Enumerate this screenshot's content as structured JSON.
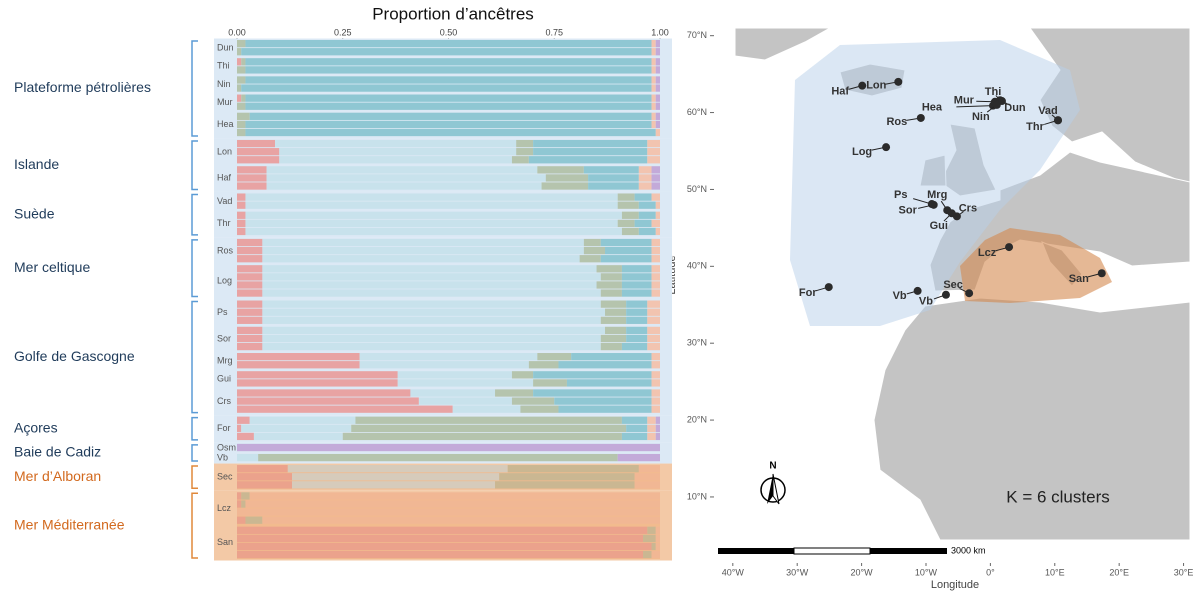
{
  "structure_plot": {
    "title": "Proportion d’ancêtres",
    "xlim": [
      0,
      1
    ],
    "xticks": [
      {
        "value": 0,
        "label": "0.00"
      },
      {
        "value": 0.25,
        "label": "0.25"
      },
      {
        "value": 0.5,
        "label": "0.50"
      },
      {
        "value": 0.75,
        "label": "0.75"
      },
      {
        "value": 1,
        "label": "1.00"
      }
    ],
    "cluster_colors": [
      "#e8a3a3",
      "#c8e2ec",
      "#b5c4ad",
      "#8fc7d3",
      "#f2c4b0",
      "#c3aad9"
    ],
    "regions": [
      {
        "name": "Plateforme pétrolières",
        "color": "#5b9bd5",
        "text_color": "#1f3b5a",
        "populations": [
          {
            "code": "Dun",
            "individuals": [
              [
                0,
                0,
                0.02,
                0.96,
                0.01,
                0.01
              ],
              [
                0,
                0,
                0.01,
                0.97,
                0.01,
                0.01
              ]
            ]
          },
          {
            "code": "Thi",
            "individuals": [
              [
                0.01,
                0,
                0.01,
                0.96,
                0.01,
                0.01
              ],
              [
                0,
                0,
                0.02,
                0.96,
                0.01,
                0.01
              ]
            ]
          },
          {
            "code": "Nin",
            "individuals": [
              [
                0,
                0,
                0.02,
                0.96,
                0.01,
                0.01
              ],
              [
                0,
                0,
                0.01,
                0.97,
                0.01,
                0.01
              ]
            ]
          },
          {
            "code": "Mur",
            "individuals": [
              [
                0.01,
                0,
                0.01,
                0.96,
                0.01,
                0.01
              ],
              [
                0,
                0,
                0.02,
                0.96,
                0.01,
                0.01
              ]
            ]
          },
          {
            "code": "Hea",
            "individuals": [
              [
                0,
                0,
                0.03,
                0.95,
                0.01,
                0.01
              ],
              [
                0,
                0,
                0.02,
                0.96,
                0.01,
                0.01
              ],
              [
                0,
                0,
                0.02,
                0.97,
                0.01,
                0
              ]
            ]
          }
        ]
      },
      {
        "name": "Islande",
        "color": "#5b9bd5",
        "text_color": "#1f3b5a",
        "populations": [
          {
            "code": "Lon",
            "individuals": [
              [
                0.09,
                0.57,
                0.04,
                0.27,
                0.03,
                0
              ],
              [
                0.1,
                0.56,
                0.04,
                0.27,
                0.03,
                0
              ],
              [
                0.1,
                0.55,
                0.04,
                0.28,
                0.03,
                0
              ]
            ]
          },
          {
            "code": "Haf",
            "individuals": [
              [
                0.07,
                0.64,
                0.11,
                0.13,
                0.03,
                0.02
              ],
              [
                0.07,
                0.66,
                0.1,
                0.12,
                0.03,
                0.02
              ],
              [
                0.07,
                0.65,
                0.11,
                0.12,
                0.03,
                0.02
              ]
            ]
          }
        ]
      },
      {
        "name": "Suède",
        "color": "#5b9bd5",
        "text_color": "#1f3b5a",
        "populations": [
          {
            "code": "Vad",
            "individuals": [
              [
                0.02,
                0.88,
                0.04,
                0.04,
                0.02,
                0
              ],
              [
                0.02,
                0.88,
                0.05,
                0.04,
                0.01,
                0
              ]
            ]
          },
          {
            "code": "Thr",
            "individuals": [
              [
                0.02,
                0.89,
                0.04,
                0.04,
                0.01,
                0
              ],
              [
                0.02,
                0.88,
                0.04,
                0.04,
                0.02,
                0
              ],
              [
                0.02,
                0.89,
                0.04,
                0.04,
                0.01,
                0
              ]
            ]
          }
        ]
      },
      {
        "name": "Mer celtique",
        "color": "#5b9bd5",
        "text_color": "#1f3b5a",
        "populations": [
          {
            "code": "Ros",
            "individuals": [
              [
                0.06,
                0.76,
                0.04,
                0.12,
                0.02,
                0
              ],
              [
                0.06,
                0.76,
                0.05,
                0.11,
                0.02,
                0
              ],
              [
                0.06,
                0.75,
                0.05,
                0.12,
                0.02,
                0
              ]
            ]
          },
          {
            "code": "Log",
            "individuals": [
              [
                0.06,
                0.79,
                0.06,
                0.07,
                0.02,
                0
              ],
              [
                0.06,
                0.8,
                0.05,
                0.07,
                0.02,
                0
              ],
              [
                0.06,
                0.79,
                0.06,
                0.07,
                0.02,
                0
              ],
              [
                0.06,
                0.8,
                0.05,
                0.07,
                0.02,
                0
              ]
            ]
          }
        ]
      },
      {
        "name": "Golfe de Gascogne",
        "color": "#5b9bd5",
        "text_color": "#1f3b5a",
        "populations": [
          {
            "code": "Ps",
            "individuals": [
              [
                0.06,
                0.8,
                0.06,
                0.05,
                0.03,
                0
              ],
              [
                0.06,
                0.81,
                0.05,
                0.05,
                0.03,
                0
              ],
              [
                0.06,
                0.8,
                0.06,
                0.05,
                0.03,
                0
              ]
            ]
          },
          {
            "code": "Sor",
            "individuals": [
              [
                0.06,
                0.81,
                0.05,
                0.05,
                0.03,
                0
              ],
              [
                0.06,
                0.8,
                0.06,
                0.05,
                0.03,
                0
              ],
              [
                0.06,
                0.8,
                0.05,
                0.06,
                0.03,
                0
              ]
            ]
          },
          {
            "code": "Mrg",
            "individuals": [
              [
                0.29,
                0.42,
                0.08,
                0.19,
                0.02,
                0
              ],
              [
                0.29,
                0.4,
                0.07,
                0.22,
                0.02,
                0
              ]
            ]
          },
          {
            "code": "Gui",
            "individuals": [
              [
                0.38,
                0.27,
                0.05,
                0.28,
                0.02,
                0
              ],
              [
                0.38,
                0.32,
                0.08,
                0.2,
                0.02,
                0
              ]
            ]
          },
          {
            "code": "Crs",
            "individuals": [
              [
                0.41,
                0.2,
                0.09,
                0.28,
                0.02,
                0
              ],
              [
                0.43,
                0.22,
                0.1,
                0.23,
                0.02,
                0
              ],
              [
                0.51,
                0.16,
                0.09,
                0.22,
                0.02,
                0
              ]
            ]
          }
        ]
      },
      {
        "name": "Açores",
        "color": "#5b9bd5",
        "text_color": "#1f3b5a",
        "populations": [
          {
            "code": "For",
            "individuals": [
              [
                0.03,
                0.25,
                0.63,
                0.06,
                0.02,
                0.01
              ],
              [
                0.01,
                0.26,
                0.65,
                0.05,
                0.02,
                0.01
              ],
              [
                0.04,
                0.21,
                0.66,
                0.06,
                0.02,
                0.01
              ]
            ]
          }
        ]
      },
      {
        "name": "Baie de Cadiz",
        "color": "#5b9bd5",
        "text_color": "#1f3b5a",
        "populations": [
          {
            "code": "Osm",
            "individuals": [
              [
                0,
                0,
                0,
                0,
                0,
                1
              ]
            ]
          },
          {
            "code": "Vb",
            "individuals": [
              [
                0,
                0.05,
                0.85,
                0,
                0,
                0.1
              ]
            ]
          }
        ]
      },
      {
        "name": "Mer d’Alboran",
        "color": "#e0883a",
        "text_color": "#d2691e",
        "populations": [
          {
            "code": "Sec",
            "individuals": [
              [
                0.12,
                0.52,
                0.31,
                0,
                0.05,
                0
              ],
              [
                0.13,
                0.49,
                0.32,
                0,
                0.06,
                0
              ],
              [
                0.13,
                0.48,
                0.33,
                0,
                0.06,
                0
              ]
            ]
          }
        ]
      },
      {
        "name": "Mer Méditerranée",
        "color": "#e0883a",
        "text_color": "#d2691e",
        "populations": [
          {
            "code": "Lcz",
            "individuals": [
              [
                0.01,
                0,
                0.02,
                0,
                0.97,
                0
              ],
              [
                0.01,
                0,
                0.01,
                0,
                0.98,
                0
              ],
              [
                0,
                0,
                0,
                0,
                1,
                0
              ],
              [
                0.02,
                0,
                0.04,
                0,
                0.94,
                0
              ]
            ]
          },
          {
            "code": "San",
            "individuals": [
              [
                0.97,
                0,
                0.02,
                0,
                0.01,
                0
              ],
              [
                0.96,
                0,
                0.03,
                0,
                0.01,
                0
              ],
              [
                0.98,
                0,
                0.01,
                0,
                0.01,
                0
              ],
              [
                0.96,
                0,
                0.02,
                0,
                0.02,
                0
              ]
            ]
          }
        ]
      }
    ]
  },
  "map": {
    "xlabel": "Longitude",
    "ylabel": "Latitude",
    "xlim": [
      -42.3,
      31
    ],
    "ylim": [
      4.4,
      71
    ],
    "xticks": [
      {
        "value": -40,
        "label": "40°W"
      },
      {
        "value": -30,
        "label": "30°W"
      },
      {
        "value": -20,
        "label": "20°W"
      },
      {
        "value": -10,
        "label": "10°W"
      },
      {
        "value": 0,
        "label": "0°"
      },
      {
        "value": 10,
        "label": "10°E"
      },
      {
        "value": 20,
        "label": "20°E"
      },
      {
        "value": 30,
        "label": "30°E"
      }
    ],
    "yticks": [
      {
        "value": 10,
        "label": "10°N"
      },
      {
        "value": 20,
        "label": "20°N"
      },
      {
        "value": 30,
        "label": "30°N"
      },
      {
        "value": 40,
        "label": "40°N"
      },
      {
        "value": 50,
        "label": "50°N"
      },
      {
        "value": 60,
        "label": "60°N"
      },
      {
        "value": 70,
        "label": "70°N"
      }
    ],
    "scale_label": "3000 km",
    "north_label": "N",
    "annotation": "K = 6 clusters",
    "sites": [
      {
        "label": "Haf",
        "lon": -19.9,
        "lat": 63.5
      },
      {
        "label": "Lon",
        "lon": -14.3,
        "lat": 64.0
      },
      {
        "label": "Hea",
        "lon": 0.4,
        "lat": 60.9
      },
      {
        "label": "Ros",
        "lon": -10.8,
        "lat": 59.3
      },
      {
        "label": "Mur",
        "lon": 0.7,
        "lat": 61.4
      },
      {
        "label": "Thi",
        "lon": 1.5,
        "lat": 61.6
      },
      {
        "label": "Dun",
        "lon": 1.8,
        "lat": 61.5
      },
      {
        "label": "Nin",
        "lon": 1.0,
        "lat": 61.0
      },
      {
        "label": "Vad",
        "lon": 10.5,
        "lat": 59.0
      },
      {
        "label": "Thr",
        "lon": 10.5,
        "lat": 59.0
      },
      {
        "label": "Log",
        "lon": -16.2,
        "lat": 55.5
      },
      {
        "label": "Ps",
        "lon": -9.1,
        "lat": 48.1
      },
      {
        "label": "Mrg",
        "lon": -6.7,
        "lat": 47.3
      },
      {
        "label": "Sor",
        "lon": -8.8,
        "lat": 48.0
      },
      {
        "label": "Crs",
        "lon": -5.2,
        "lat": 46.5
      },
      {
        "label": "Gui",
        "lon": -6.0,
        "lat": 46.9
      },
      {
        "label": "Lcz",
        "lon": 2.9,
        "lat": 42.5
      },
      {
        "label": "San",
        "lon": 17.3,
        "lat": 39.1
      },
      {
        "label": "Sec",
        "lon": -3.3,
        "lat": 36.5
      },
      {
        "label": "Vb",
        "lon": -11.3,
        "lat": 36.8
      },
      {
        "label": "Vb",
        "lon": -6.9,
        "lat": 36.3
      },
      {
        "label": "For",
        "lon": -25.1,
        "lat": 37.3
      }
    ]
  }
}
